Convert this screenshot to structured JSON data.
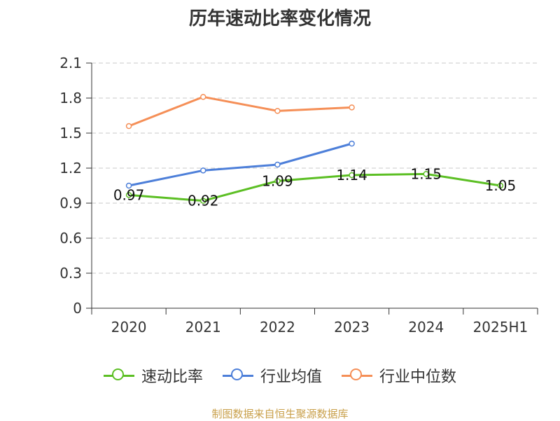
{
  "chart_data": {
    "type": "line",
    "title": "历年速动比率变化情况",
    "categories": [
      "2020",
      "2021",
      "2022",
      "2023",
      "2024",
      "2025H1"
    ],
    "ylim": [
      0,
      2.1
    ],
    "yticks": [
      "0",
      "0.3",
      "0.6",
      "0.9",
      "1.2",
      "1.5",
      "1.8",
      "2.1"
    ],
    "grid": true,
    "legend_position": "bottom",
    "series": [
      {
        "name": "速动比率",
        "color": "#5cbf24",
        "values": [
          0.97,
          0.92,
          1.09,
          1.14,
          1.15,
          1.05
        ],
        "labels": [
          "0.97",
          "0.92",
          "1.09",
          "1.14",
          "1.15",
          "1.05"
        ]
      },
      {
        "name": "行业均值",
        "color": "#4d7fd9",
        "values": [
          1.05,
          1.18,
          1.23,
          1.41,
          null,
          null
        ]
      },
      {
        "name": "行业中位数",
        "color": "#f58f57",
        "values": [
          1.56,
          1.81,
          1.69,
          1.72,
          null,
          null
        ]
      }
    ]
  },
  "source": "制图数据来自恒生聚源数据库"
}
